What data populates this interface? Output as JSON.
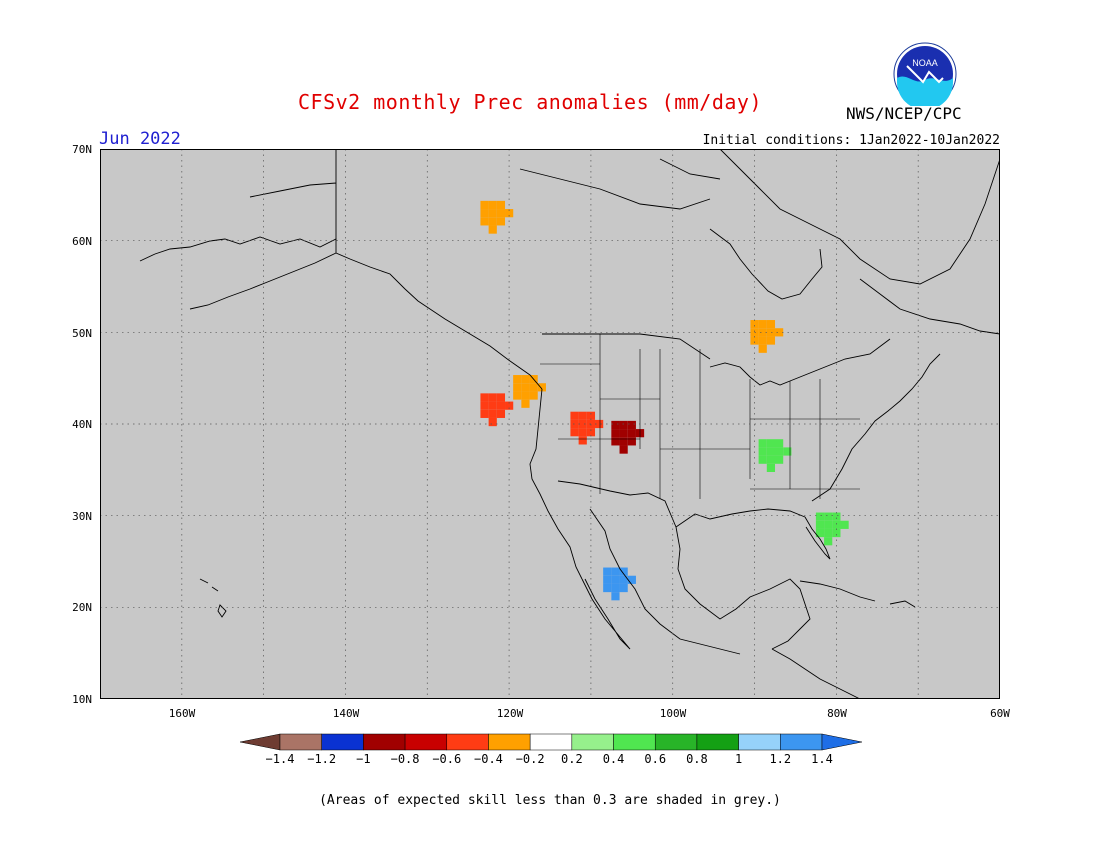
{
  "header": {
    "title": "CFSv2 monthly Prec anomalies (mm/day)",
    "period": "Jun 2022",
    "initial_conditions": "Initial conditions: 1Jan2022-10Jan2022",
    "agency": "NWS/NCEP/CPC",
    "logo_text": "NOAA"
  },
  "map": {
    "lon_range": [
      -170,
      -60
    ],
    "lat_range": [
      10,
      70
    ],
    "background_color": "#c8c8c8",
    "gridlines": "dotted",
    "lat_labels": [
      "70N",
      "60N",
      "50N",
      "40N",
      "30N",
      "20N",
      "10N"
    ],
    "lon_labels": [
      "160W",
      "140W",
      "120W",
      "100W",
      "80W",
      "60W"
    ]
  },
  "legend": {
    "labels": [
      "-1.4",
      "-1.2",
      "-1",
      "-0.8",
      "-0.6",
      "-0.4",
      "-0.2",
      "0.2",
      "0.4",
      "0.6",
      "0.8",
      "1",
      "1.2",
      "1.4"
    ],
    "colors": [
      "#6e3c32",
      "#aa7466",
      "#0a32d2",
      "#a00000",
      "#c80000",
      "#ff3c14",
      "#ffa000",
      "#ffffff",
      "#96f08c",
      "#50e650",
      "#28b428",
      "#14a014",
      "#96d2fa",
      "#3c96f0",
      "#1e6ee6"
    ]
  },
  "footnote": "(Areas of expected skill less than 0.3 are shaded in grey.)",
  "anomaly_patches": [
    {
      "region": "Northern California / Oregon",
      "lon": -122,
      "lat": 42,
      "value": -0.6
    },
    {
      "region": "Idaho / Nevada",
      "lon": -118,
      "lat": 44,
      "value": -0.4
    },
    {
      "region": "Utah",
      "lon": -111,
      "lat": 40,
      "value": -0.6
    },
    {
      "region": "Colorado",
      "lon": -106,
      "lat": 39,
      "value": -1
    },
    {
      "region": "Western Mexico coast",
      "lon": -107,
      "lat": 23,
      "value": 1.2
    },
    {
      "region": "Tennessee Valley",
      "lon": -88,
      "lat": 37,
      "value": 0.4
    },
    {
      "region": "Florida",
      "lon": -81,
      "lat": 29,
      "value": 0.4
    },
    {
      "region": "Western Ontario",
      "lon": -89,
      "lat": 50,
      "value": -0.4
    },
    {
      "region": "Yukon / NWT",
      "lon": -122,
      "lat": 63,
      "value": -0.4
    }
  ]
}
